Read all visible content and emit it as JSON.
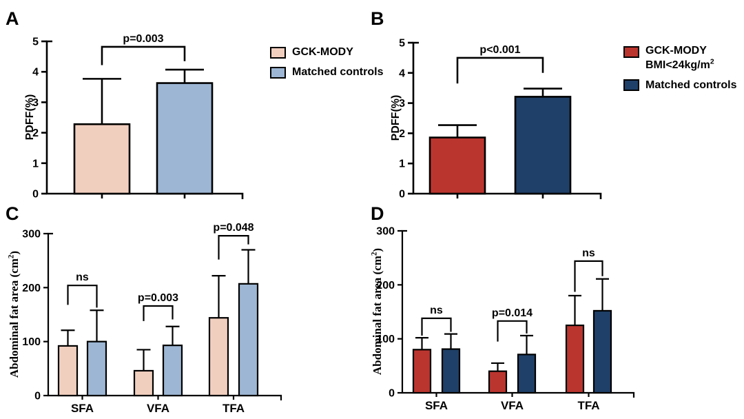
{
  "colors": {
    "pink": "#F1CFBF",
    "light_blue": "#9DB6D4",
    "red": "#BB352F",
    "dark_blue": "#1F4068",
    "bar_border": "#000000",
    "text": "#000000",
    "background": "#FFFFFF"
  },
  "legend_a": {
    "items": [
      {
        "color": "pink",
        "label": "GCK-MODY"
      },
      {
        "color": "light_blue",
        "label": "Matched controls"
      }
    ]
  },
  "legend_b": {
    "items": [
      {
        "color": "red",
        "label_line1": "GCK-MODY",
        "label_line2_base": "BMI<24kg/m",
        "label_line2_sup": "2"
      },
      {
        "color": "dark_blue",
        "label": "Matched controls"
      }
    ]
  },
  "chart_data": [
    {
      "panel_label": "A",
      "type": "bar",
      "title": "",
      "xlabel": "",
      "ylabel": "PDFF(%)",
      "ylim": [
        0,
        5
      ],
      "yticks": [
        0,
        1,
        2,
        3,
        4,
        5
      ],
      "grid": false,
      "legend_position": "right",
      "groups": [
        {
          "label": "",
          "bars": [
            {
              "series": "GCK-MODY",
              "color": "pink",
              "value": 2.28,
              "error_top": 3.77
            }
          ]
        },
        {
          "label": "",
          "bars": [
            {
              "series": "Matched controls",
              "color": "light_blue",
              "value": 3.63,
              "error_top": 4.07
            }
          ]
        }
      ],
      "significance": [
        {
          "label": "p=0.003",
          "from": [
            0,
            0
          ],
          "to": [
            1,
            0
          ],
          "bracket_top": 4.82,
          "left_arm_bottom": 4.22,
          "right_arm_bottom": 4.35
        }
      ]
    },
    {
      "panel_label": "B",
      "type": "bar",
      "title": "",
      "xlabel": "",
      "ylabel": "PDFF(%)",
      "ylim": [
        0,
        5
      ],
      "yticks": [
        0,
        1,
        2,
        3,
        4,
        5
      ],
      "grid": false,
      "legend_position": "right",
      "groups": [
        {
          "label": "",
          "bars": [
            {
              "series": "GCK-MODY BMI<24kg/m²",
              "color": "red",
              "value": 1.86,
              "error_top": 2.27
            }
          ]
        },
        {
          "label": "",
          "bars": [
            {
              "series": "Matched controls",
              "color": "dark_blue",
              "value": 3.21,
              "error_top": 3.48
            }
          ]
        }
      ],
      "significance": [
        {
          "label": "p<0.001",
          "from": [
            0,
            0
          ],
          "to": [
            1,
            0
          ],
          "bracket_top": 4.5,
          "left_arm_bottom": 3.65,
          "right_arm_bottom": 4.0
        }
      ]
    },
    {
      "panel_label": "C",
      "type": "bar",
      "title": "",
      "xlabel": "",
      "ylabel": "Abdominal fat area (cm²)",
      "ylabel_base": "Abdominal fat area (cm",
      "ylabel_sup": "2",
      "ylabel_end": ")",
      "ylim": [
        0,
        300
      ],
      "yticks": [
        0,
        100,
        200,
        300
      ],
      "grid": false,
      "groups": [
        {
          "label": "SFA",
          "bars": [
            {
              "series": "GCK-MODY",
              "color": "pink",
              "value": 92,
              "error_top": 121
            },
            {
              "series": "Matched controls",
              "color": "light_blue",
              "value": 100,
              "error_top": 158
            }
          ]
        },
        {
          "label": "VFA",
          "bars": [
            {
              "series": "GCK-MODY",
              "color": "pink",
              "value": 46,
              "error_top": 85
            },
            {
              "series": "Matched controls",
              "color": "light_blue",
              "value": 93,
              "error_top": 128
            }
          ]
        },
        {
          "label": "TFA",
          "bars": [
            {
              "series": "GCK-MODY",
              "color": "pink",
              "value": 144,
              "error_top": 222
            },
            {
              "series": "Matched controls",
              "color": "light_blue",
              "value": 207,
              "error_top": 270
            }
          ]
        }
      ],
      "significance": [
        {
          "label": "ns",
          "from": [
            0,
            0
          ],
          "to": [
            0,
            1
          ],
          "bracket_top": 204,
          "left_arm_bottom": 168,
          "right_arm_bottom": 163
        },
        {
          "label": "p=0.003",
          "from": [
            1,
            0
          ],
          "to": [
            1,
            1
          ],
          "bracket_top": 166,
          "left_arm_bottom": 138,
          "right_arm_bottom": 141
        },
        {
          "label": "p=0.048",
          "from": [
            2,
            0
          ],
          "to": [
            2,
            1
          ],
          "bracket_top": 296,
          "left_arm_bottom": 252,
          "right_arm_bottom": 280
        }
      ]
    },
    {
      "panel_label": "D",
      "type": "bar",
      "title": "",
      "xlabel": "",
      "ylabel": "Abdominal fat area (cm²)",
      "ylabel_base": "Abdominal fat area (cm",
      "ylabel_sup": "2",
      "ylabel_end": ")",
      "ylim": [
        0,
        300
      ],
      "yticks": [
        0,
        100,
        200,
        300
      ],
      "grid": false,
      "groups": [
        {
          "label": "SFA",
          "bars": [
            {
              "series": "GCK-MODY BMI<24kg/m²",
              "color": "red",
              "value": 80,
              "error_top": 102
            },
            {
              "series": "Matched controls",
              "color": "dark_blue",
              "value": 81,
              "error_top": 109
            }
          ]
        },
        {
          "label": "VFA",
          "bars": [
            {
              "series": "GCK-MODY BMI<24kg/m²",
              "color": "red",
              "value": 40,
              "error_top": 55
            },
            {
              "series": "Matched controls",
              "color": "dark_blue",
              "value": 71,
              "error_top": 106
            }
          ]
        },
        {
          "label": "TFA",
          "bars": [
            {
              "series": "GCK-MODY BMI<24kg/m²",
              "color": "red",
              "value": 125,
              "error_top": 180
            },
            {
              "series": "Matched controls",
              "color": "dark_blue",
              "value": 152,
              "error_top": 211
            }
          ]
        }
      ],
      "significance": [
        {
          "label": "ns",
          "from": [
            0,
            0
          ],
          "to": [
            0,
            1
          ],
          "bracket_top": 138,
          "left_arm_bottom": 106,
          "right_arm_bottom": 113
        },
        {
          "label": "p=0.014",
          "from": [
            1,
            0
          ],
          "to": [
            1,
            1
          ],
          "bracket_top": 133,
          "left_arm_bottom": 95,
          "right_arm_bottom": 110
        },
        {
          "label": "ns",
          "from": [
            2,
            0
          ],
          "to": [
            2,
            1
          ],
          "bracket_top": 244,
          "left_arm_bottom": 187,
          "right_arm_bottom": 216
        }
      ]
    }
  ]
}
